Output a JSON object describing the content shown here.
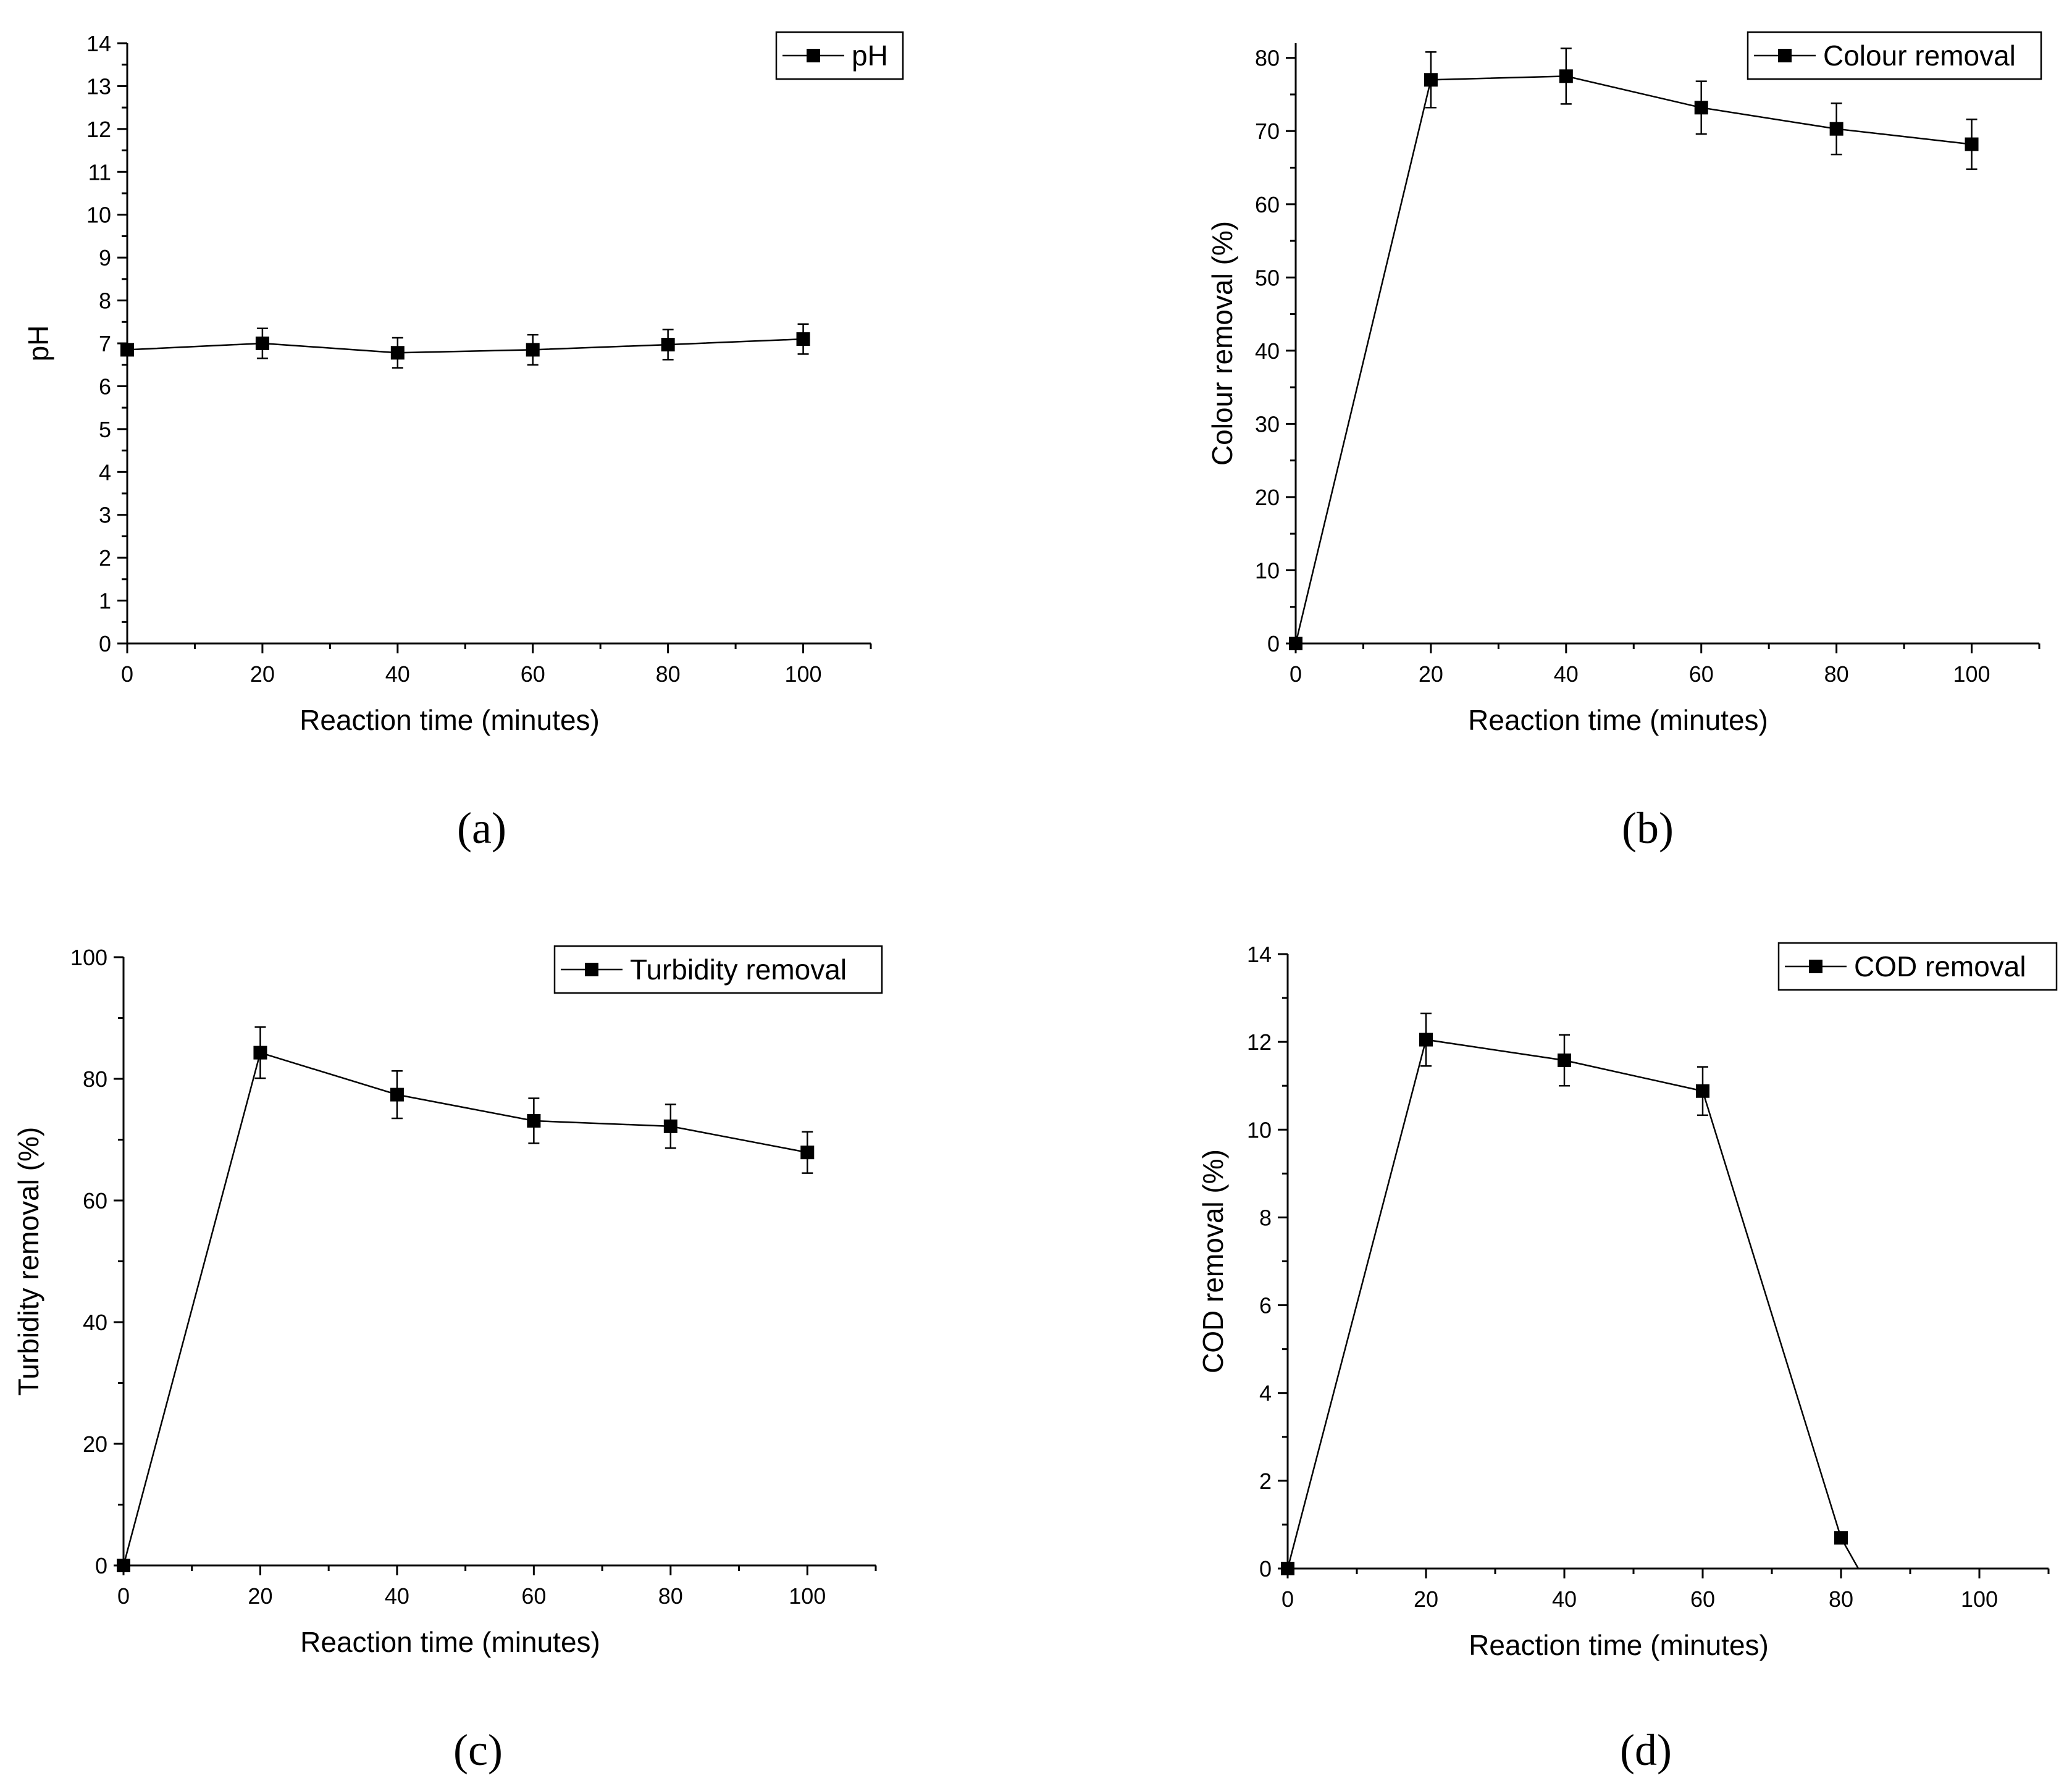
{
  "chart_data": [
    {
      "id": "a",
      "type": "line",
      "panel_label": "(a)",
      "xlabel": "Reaction time (minutes)",
      "ylabel": "pH",
      "xlim": [
        0,
        110
      ],
      "ylim": [
        0,
        14
      ],
      "xticks": [
        0,
        20,
        40,
        60,
        80,
        100
      ],
      "yticks": [
        0,
        1,
        2,
        3,
        4,
        5,
        6,
        7,
        8,
        9,
        10,
        11,
        12,
        13,
        14
      ],
      "legend_position": "top-right",
      "series": [
        {
          "name": "pH",
          "x": [
            0,
            20,
            40,
            60,
            80,
            100
          ],
          "y": [
            6.85,
            7.0,
            6.78,
            6.85,
            6.97,
            7.1
          ],
          "err": [
            0,
            0.35,
            0.35,
            0.35,
            0.35,
            0.35
          ]
        }
      ]
    },
    {
      "id": "b",
      "type": "line",
      "panel_label": "(b)",
      "xlabel": "Reaction time (minutes)",
      "ylabel": "Colour removal (%)",
      "xlim": [
        0,
        110
      ],
      "ylim": [
        0,
        82
      ],
      "xticks": [
        0,
        20,
        40,
        60,
        80,
        100
      ],
      "yticks": [
        0,
        10,
        20,
        30,
        40,
        50,
        60,
        70,
        80
      ],
      "legend_position": "top-right",
      "series": [
        {
          "name": "Colour removal",
          "x": [
            0,
            20,
            40,
            60,
            80,
            100
          ],
          "y": [
            0,
            77.0,
            77.5,
            73.2,
            70.3,
            68.2
          ],
          "err": [
            0,
            3.8,
            3.8,
            3.6,
            3.5,
            3.4
          ]
        }
      ]
    },
    {
      "id": "c",
      "type": "line",
      "panel_label": "(c)",
      "xlabel": "Reaction time (minutes)",
      "ylabel": "Turbidity removal (%)",
      "xlim": [
        0,
        110
      ],
      "ylim": [
        0,
        100
      ],
      "xticks": [
        0,
        20,
        40,
        60,
        80,
        100
      ],
      "yticks": [
        0,
        20,
        40,
        60,
        80,
        100
      ],
      "legend_position": "top-right",
      "series": [
        {
          "name": "Turbidity removal",
          "x": [
            0,
            20,
            40,
            60,
            80,
            100
          ],
          "y": [
            0,
            84.3,
            77.4,
            73.1,
            72.2,
            67.9
          ],
          "err": [
            0,
            4.2,
            3.9,
            3.7,
            3.6,
            3.4
          ]
        }
      ]
    },
    {
      "id": "d",
      "type": "line",
      "panel_label": "(d)",
      "xlabel": "Reaction time (minutes)",
      "ylabel": "COD removal (%)",
      "xlim": [
        0,
        110
      ],
      "ylim": [
        0,
        14
      ],
      "xticks": [
        0,
        20,
        40,
        60,
        80,
        100
      ],
      "yticks": [
        0,
        2,
        4,
        6,
        8,
        10,
        12,
        14
      ],
      "legend_position": "top-right",
      "series": [
        {
          "name": "COD removal",
          "x": [
            0,
            20,
            40,
            60,
            80,
            82.5
          ],
          "y": [
            0,
            12.05,
            11.58,
            10.88,
            0.7,
            0
          ],
          "err": [
            0,
            0.6,
            0.58,
            0.55,
            0,
            0
          ],
          "markers": [
            true,
            true,
            true,
            true,
            true,
            false
          ]
        }
      ]
    }
  ]
}
